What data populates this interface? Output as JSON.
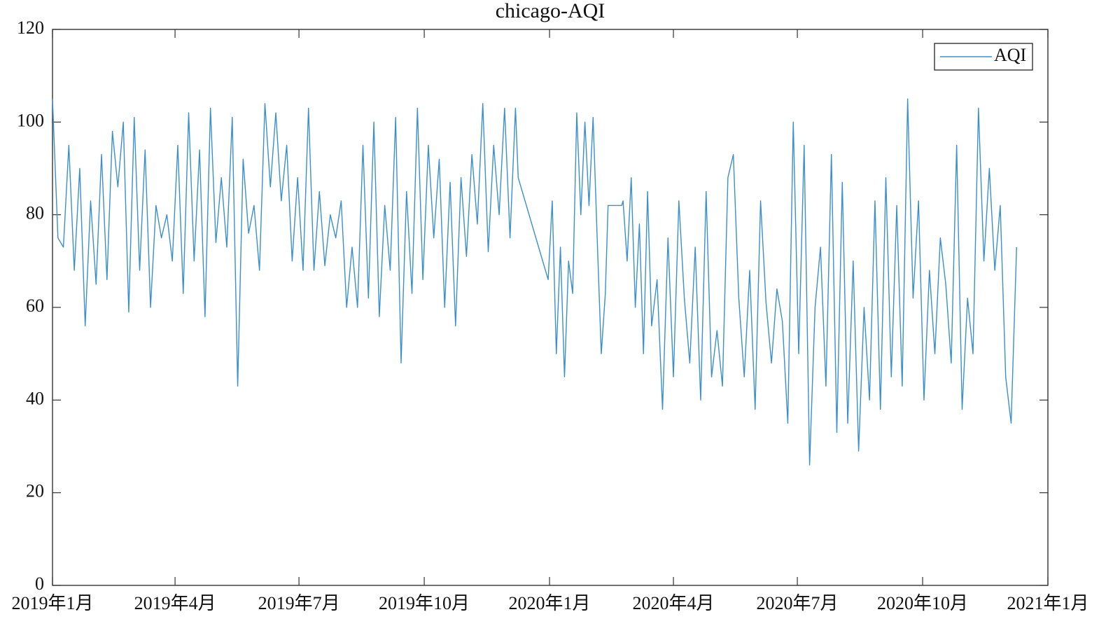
{
  "chart_data": {
    "type": "line",
    "title": "chicago-AQI",
    "x": [
      0,
      4,
      8,
      12,
      16,
      20,
      24,
      28,
      32,
      36,
      40,
      44,
      48,
      52,
      56,
      60,
      64,
      68,
      72,
      76,
      80,
      84,
      88,
      92,
      96,
      100,
      104,
      108,
      112,
      116,
      120,
      124,
      128,
      132,
      136,
      140,
      144,
      148,
      152,
      156,
      160,
      164,
      168,
      172,
      176,
      180,
      184,
      188,
      192,
      196,
      200,
      204,
      208,
      212,
      216,
      220,
      224,
      228,
      232,
      236,
      240,
      244,
      248,
      252,
      256,
      260,
      264,
      268,
      272,
      276,
      280,
      284,
      288,
      292,
      296,
      300,
      304,
      308,
      312,
      316,
      320,
      324,
      328,
      332,
      336,
      340,
      342,
      364,
      367,
      370,
      373,
      376,
      379,
      382,
      385,
      388,
      391,
      394,
      397,
      400,
      403,
      406,
      408,
      418,
      419,
      422,
      425,
      428,
      431,
      434,
      437,
      440,
      444,
      448,
      452,
      456,
      460,
      464,
      468,
      472,
      476,
      480,
      484,
      488,
      492,
      496,
      500,
      504,
      508,
      512,
      516,
      520,
      524,
      528,
      532,
      536,
      540,
      544,
      548,
      552,
      556,
      560,
      564,
      568,
      572,
      576,
      580,
      584,
      588,
      592,
      596,
      600,
      604,
      608,
      612,
      616,
      620,
      624,
      628,
      632,
      636,
      640,
      644,
      648,
      652,
      656,
      660,
      664,
      668,
      672,
      676,
      680,
      684,
      688,
      692,
      696,
      700,
      704,
      708
    ],
    "series": [
      {
        "name": "AQI",
        "color": "#3a8fcc",
        "values": [
          105,
          75,
          73,
          95,
          68,
          90,
          56,
          83,
          65,
          93,
          66,
          98,
          86,
          100,
          59,
          101,
          68,
          94,
          60,
          82,
          75,
          80,
          70,
          95,
          63,
          102,
          70,
          94,
          58,
          103,
          74,
          88,
          73,
          101,
          43,
          92,
          76,
          82,
          68,
          104,
          86,
          102,
          83,
          95,
          70,
          88,
          68,
          103,
          68,
          85,
          69,
          80,
          75,
          83,
          60,
          73,
          60,
          95,
          62,
          100,
          58,
          82,
          68,
          101,
          48,
          85,
          63,
          103,
          66,
          95,
          75,
          92,
          60,
          87,
          56,
          88,
          71,
          93,
          78,
          104,
          72,
          95,
          80,
          103,
          75,
          103,
          88,
          66,
          83,
          50,
          73,
          45,
          70,
          63,
          102,
          80,
          100,
          82,
          101,
          75,
          50,
          63,
          82,
          82,
          83,
          70,
          88,
          60,
          78,
          50,
          85,
          56,
          66,
          38,
          75,
          45,
          83,
          62,
          48,
          73,
          40,
          85,
          45,
          55,
          43,
          88,
          93,
          62,
          45,
          68,
          38,
          83,
          61,
          48,
          64,
          57,
          35,
          100,
          50,
          95,
          26,
          60,
          73,
          43,
          93,
          33,
          87,
          35,
          70,
          29,
          60,
          40,
          83,
          38,
          88,
          45,
          82,
          43,
          105,
          62,
          83,
          40,
          68,
          50,
          75,
          65,
          48,
          95,
          38,
          62,
          50,
          103,
          70,
          90,
          68,
          82,
          45,
          35,
          73
        ]
      }
    ],
    "xlim": [
      0,
      731
    ],
    "xticks": [
      {
        "value": 0,
        "label": "2019年1月"
      },
      {
        "value": 90,
        "label": "2019年4月"
      },
      {
        "value": 181,
        "label": "2019年7月"
      },
      {
        "value": 273,
        "label": "2019年10月"
      },
      {
        "value": 365,
        "label": "2020年1月"
      },
      {
        "value": 456,
        "label": "2020年4月"
      },
      {
        "value": 547,
        "label": "2020年7月"
      },
      {
        "value": 639,
        "label": "2020年10月"
      },
      {
        "value": 731,
        "label": "2021年1月"
      }
    ],
    "ylim": [
      0,
      120
    ],
    "yticks": [
      0,
      20,
      40,
      60,
      80,
      100,
      120
    ],
    "legend": "upper right"
  }
}
